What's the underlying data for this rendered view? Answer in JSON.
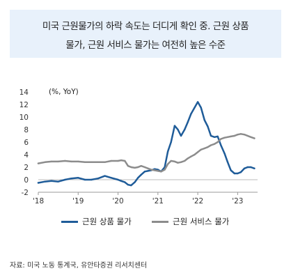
{
  "title": {
    "line1": "미국 근원물가의 하락 속도는 더디게 확인 중. 근원 상품",
    "line2": "물가, 근원 서비스 물가는 여전히 높은 수준"
  },
  "source": "자료: 미국 노동 통계국, 유안타증권 리서치센터",
  "chart_data": {
    "type": "line",
    "unit_label": "(%, YoY)",
    "xlim": [
      2018.0,
      2023.5
    ],
    "ylim": [
      -2,
      14
    ],
    "yticks": [
      -2,
      0,
      2,
      4,
      6,
      8,
      10,
      12,
      14
    ],
    "xticks": [
      {
        "value": 2018.0,
        "label": "'18"
      },
      {
        "value": 2019.0,
        "label": "'19"
      },
      {
        "value": 2020.0,
        "label": "'20"
      },
      {
        "value": 2021.0,
        "label": "'21"
      },
      {
        "value": 2022.0,
        "label": "'22"
      },
      {
        "value": 2023.0,
        "label": "'23"
      }
    ],
    "grid": false,
    "legend_position": "bottom",
    "series": [
      {
        "name": "근원 상품 물가",
        "color": "#1f5c99",
        "x": [
          2018.0,
          2018.17,
          2018.33,
          2018.5,
          2018.67,
          2018.83,
          2019.0,
          2019.17,
          2019.33,
          2019.5,
          2019.67,
          2019.83,
          2020.0,
          2020.08,
          2020.17,
          2020.25,
          2020.33,
          2020.42,
          2020.5,
          2020.58,
          2020.67,
          2020.75,
          2020.83,
          2020.92,
          2021.0,
          2021.08,
          2021.17,
          2021.25,
          2021.33,
          2021.42,
          2021.5,
          2021.58,
          2021.67,
          2021.75,
          2021.83,
          2021.92,
          2022.0,
          2022.08,
          2022.17,
          2022.25,
          2022.33,
          2022.42,
          2022.5,
          2022.58,
          2022.67,
          2022.75,
          2022.83,
          2022.92,
          2023.0,
          2023.08,
          2023.17,
          2023.25,
          2023.33,
          2023.42
        ],
        "values": [
          -0.5,
          -0.3,
          -0.2,
          -0.3,
          0.0,
          0.2,
          0.3,
          0.0,
          0.0,
          0.2,
          0.6,
          0.3,
          0.0,
          -0.2,
          -0.4,
          -0.8,
          -0.9,
          -0.4,
          0.3,
          0.8,
          1.3,
          1.4,
          1.5,
          1.7,
          1.6,
          1.3,
          2.0,
          4.5,
          6.0,
          8.6,
          8.0,
          7.0,
          8.0,
          9.2,
          10.5,
          11.5,
          12.4,
          11.5,
          9.5,
          8.5,
          7.0,
          6.8,
          6.9,
          5.5,
          4.2,
          2.8,
          1.5,
          1.0,
          1.0,
          1.2,
          1.8,
          2.0,
          2.0,
          1.8
        ]
      },
      {
        "name": "근원 서비스 물가",
        "color": "#8c8c8c",
        "x": [
          2018.0,
          2018.17,
          2018.33,
          2018.5,
          2018.67,
          2018.83,
          2019.0,
          2019.17,
          2019.33,
          2019.5,
          2019.67,
          2019.83,
          2020.0,
          2020.08,
          2020.17,
          2020.25,
          2020.33,
          2020.42,
          2020.5,
          2020.58,
          2020.67,
          2020.75,
          2020.83,
          2020.92,
          2021.0,
          2021.08,
          2021.17,
          2021.25,
          2021.33,
          2021.42,
          2021.5,
          2021.58,
          2021.67,
          2021.75,
          2021.83,
          2021.92,
          2022.0,
          2022.08,
          2022.17,
          2022.25,
          2022.33,
          2022.42,
          2022.5,
          2022.58,
          2022.67,
          2022.75,
          2022.83,
          2022.92,
          2023.0,
          2023.08,
          2023.17,
          2023.25,
          2023.33,
          2023.42
        ],
        "values": [
          2.6,
          2.8,
          2.9,
          2.9,
          3.0,
          2.9,
          2.9,
          2.8,
          2.8,
          2.8,
          2.8,
          3.0,
          3.0,
          3.1,
          3.0,
          2.2,
          2.0,
          1.9,
          2.0,
          2.2,
          2.0,
          1.8,
          1.6,
          1.5,
          1.4,
          1.3,
          1.6,
          2.5,
          3.0,
          2.9,
          2.7,
          2.8,
          3.0,
          3.4,
          3.7,
          4.0,
          4.4,
          4.8,
          5.0,
          5.2,
          5.5,
          5.7,
          6.0,
          6.5,
          6.7,
          6.8,
          6.9,
          7.0,
          7.2,
          7.3,
          7.2,
          7.0,
          6.8,
          6.6
        ]
      }
    ]
  }
}
